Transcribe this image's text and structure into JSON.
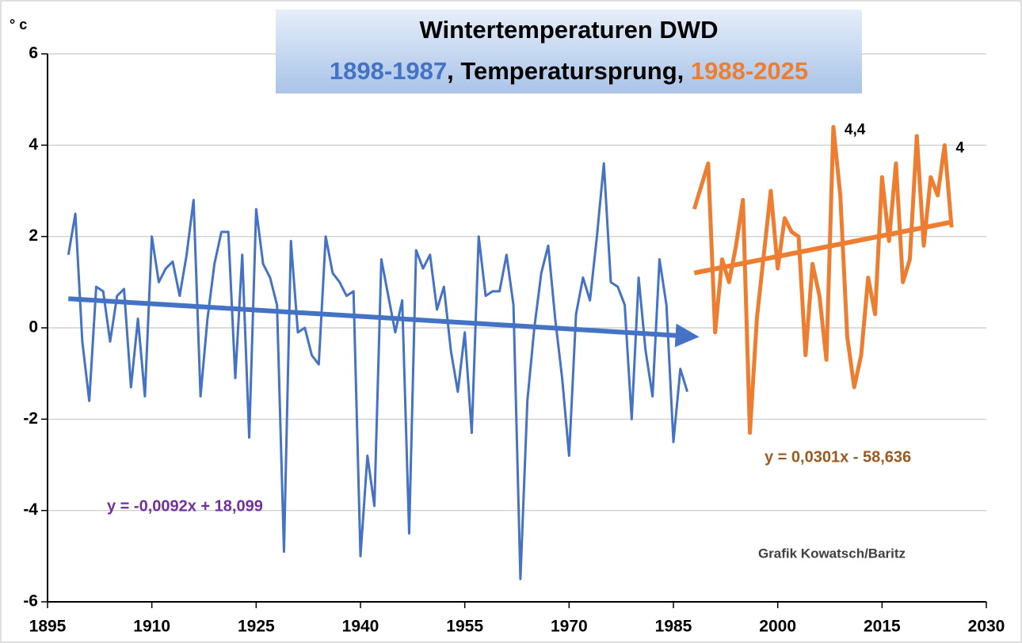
{
  "chart_data": {
    "type": "line",
    "title": "Wintertemperaturen DWD",
    "subtitle": ", Temperatursprung, ",
    "y_label": "° c",
    "annotation": "Grafik Kowatsch/Baritz",
    "xlim": [
      1895,
      2030
    ],
    "xticks": [
      1895,
      1910,
      1925,
      1940,
      1955,
      1970,
      1985,
      2000,
      2015,
      2030
    ],
    "ylim": [
      -6,
      6
    ],
    "yticks": [
      -6,
      -4,
      -2,
      0,
      2,
      4,
      6
    ],
    "grid": true,
    "series": [
      {
        "name": "1898-1987",
        "color": "#4472c4",
        "x": [
          1898,
          1899,
          1900,
          1901,
          1902,
          1903,
          1904,
          1905,
          1906,
          1907,
          1908,
          1909,
          1910,
          1911,
          1912,
          1913,
          1914,
          1915,
          1916,
          1917,
          1918,
          1919,
          1920,
          1921,
          1922,
          1923,
          1924,
          1925,
          1926,
          1927,
          1928,
          1929,
          1930,
          1931,
          1932,
          1933,
          1934,
          1935,
          1936,
          1937,
          1938,
          1939,
          1940,
          1941,
          1942,
          1943,
          1944,
          1945,
          1946,
          1947,
          1948,
          1949,
          1950,
          1951,
          1952,
          1953,
          1954,
          1955,
          1956,
          1957,
          1958,
          1959,
          1960,
          1961,
          1962,
          1963,
          1964,
          1965,
          1966,
          1967,
          1968,
          1969,
          1970,
          1971,
          1972,
          1973,
          1974,
          1975,
          1976,
          1977,
          1978,
          1979,
          1980,
          1981,
          1982,
          1983,
          1984,
          1985,
          1986,
          1987
        ],
        "values": [
          1.6,
          2.5,
          -0.3,
          -1.6,
          0.9,
          0.8,
          -0.3,
          0.7,
          0.85,
          -1.3,
          0.2,
          -1.5,
          2.0,
          1.0,
          1.3,
          1.45,
          0.7,
          1.6,
          2.8,
          -1.5,
          0.2,
          1.4,
          2.1,
          2.1,
          -1.1,
          1.6,
          -2.4,
          2.6,
          1.4,
          1.1,
          0.5,
          -4.9,
          1.9,
          -0.1,
          0.0,
          -0.6,
          -0.8,
          2.0,
          1.2,
          1.0,
          0.7,
          0.8,
          -5.0,
          -2.8,
          -3.9,
          1.5,
          0.7,
          -0.1,
          0.6,
          -4.5,
          1.7,
          1.3,
          1.6,
          0.4,
          0.9,
          -0.5,
          -1.4,
          -0.1,
          -2.3,
          2.0,
          0.7,
          0.8,
          0.8,
          1.6,
          0.5,
          -5.5,
          -1.6,
          0.0,
          1.2,
          1.8,
          0.2,
          -1.1,
          -2.8,
          0.3,
          1.1,
          0.6,
          2.0,
          3.6,
          1.0,
          0.9,
          0.5,
          -2.0,
          1.1,
          -0.5,
          -1.5,
          1.5,
          0.5,
          -2.5,
          -0.9,
          -1.4
        ],
        "trend": {
          "label": "y = -0,0092x + 18,099",
          "color": "#7030a0",
          "slope": -0.0092,
          "intercept": 18.099
        }
      },
      {
        "name": "1988-2025",
        "color": "#ed7d31",
        "x": [
          1988,
          1989,
          1990,
          1991,
          1992,
          1993,
          1994,
          1995,
          1996,
          1997,
          1998,
          1999,
          2000,
          2001,
          2002,
          2003,
          2004,
          2005,
          2006,
          2007,
          2008,
          2009,
          2010,
          2011,
          2012,
          2013,
          2014,
          2015,
          2016,
          2017,
          2018,
          2019,
          2020,
          2021,
          2022,
          2023,
          2024,
          2025
        ],
        "values": [
          2.6,
          3.1,
          3.6,
          -0.1,
          1.5,
          1.0,
          1.8,
          2.8,
          -2.3,
          0.2,
          1.6,
          3.0,
          1.3,
          2.4,
          2.1,
          2.0,
          -0.6,
          1.4,
          0.7,
          -0.7,
          4.4,
          2.9,
          -0.2,
          -1.3,
          -0.6,
          1.1,
          0.3,
          3.3,
          1.9,
          3.6,
          1.0,
          1.5,
          4.2,
          1.8,
          3.3,
          2.9,
          4.0,
          2.2
        ],
        "value_labels": [
          null,
          null,
          null,
          null,
          null,
          null,
          null,
          null,
          null,
          null,
          null,
          null,
          null,
          null,
          null,
          null,
          null,
          null,
          null,
          null,
          "4,4",
          null,
          null,
          null,
          null,
          null,
          null,
          null,
          null,
          null,
          null,
          null,
          null,
          null,
          null,
          null,
          "4",
          null
        ],
        "trend": {
          "label": "y = 0,0301x - 58,636",
          "color": "#9c5a1e",
          "slope": 0.0301,
          "intercept": -58.636
        }
      }
    ]
  }
}
